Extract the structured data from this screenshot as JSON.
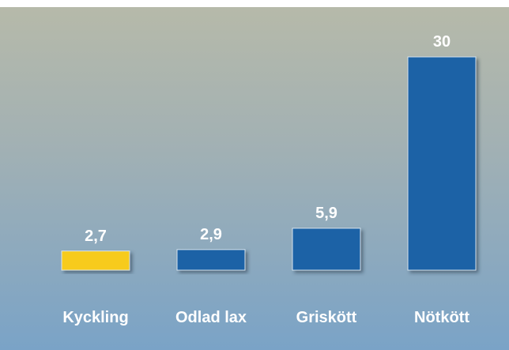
{
  "chart_data": {
    "type": "bar",
    "categories": [
      "Kyckling",
      "Odlad lax",
      "Griskött",
      "Nötkött"
    ],
    "values": [
      2.7,
      2.9,
      5.9,
      30
    ],
    "value_labels": [
      "2,7",
      "2,9",
      "5,9",
      "30"
    ],
    "colors": [
      "#f7cb1f",
      "#1b62a6",
      "#1b62a6",
      "#1b62a6"
    ]
  }
}
